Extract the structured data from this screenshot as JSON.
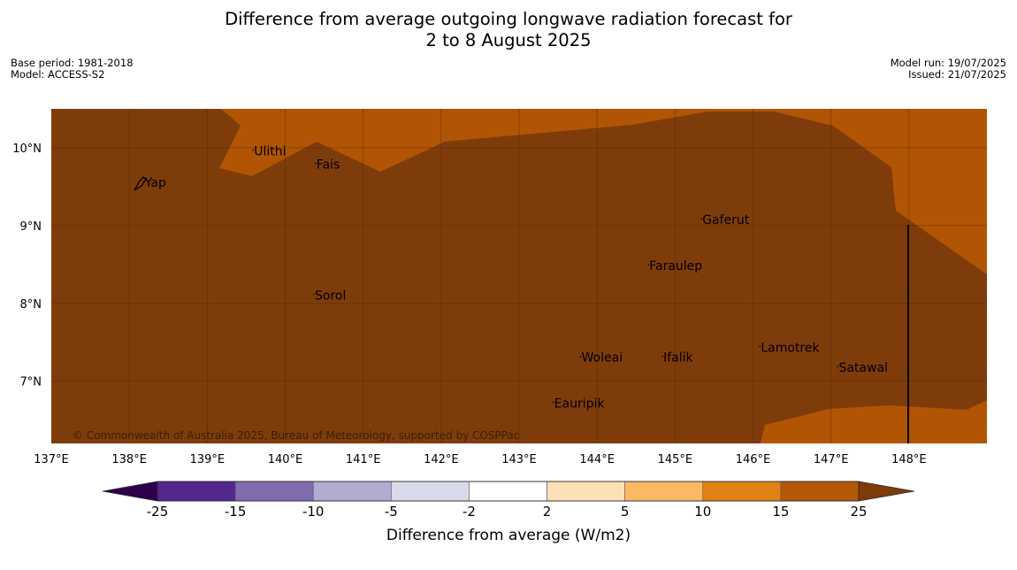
{
  "title_line1": "Difference from average outgoing longwave radiation forecast for",
  "title_line2": "2 to 8 August 2025",
  "meta_left": [
    "Base period: 1981-2018",
    "Model: ACCESS-S2"
  ],
  "meta_right": [
    "Model run: 19/07/2025",
    "Issued: 21/07/2025"
  ],
  "map": {
    "lon_range": [
      137,
      149
    ],
    "lat_range": [
      6.2,
      10.5
    ],
    "x_ticks": [
      "137°E",
      "138°E",
      "139°E",
      "140°E",
      "141°E",
      "142°E",
      "143°E",
      "144°E",
      "145°E",
      "146°E",
      "147°E",
      "148°E"
    ],
    "y_ticks": [
      "10°N",
      "9°N",
      "8°N",
      "7°N"
    ],
    "copyright": "© Commonwealth of Australia 2025, Bureau of Meteorology, supported by COSPPac",
    "places": [
      {
        "name": "Yap",
        "lon": 138.2,
        "lat": 9.5
      },
      {
        "name": "Ulithi",
        "lon": 139.6,
        "lat": 9.9
      },
      {
        "name": "Fais",
        "lon": 140.4,
        "lat": 9.73
      },
      {
        "name": "Gaferut",
        "lon": 145.35,
        "lat": 9.02
      },
      {
        "name": "Faraulep",
        "lon": 144.67,
        "lat": 8.43
      },
      {
        "name": "Sorol",
        "lon": 140.38,
        "lat": 8.05
      },
      {
        "name": "Woleai",
        "lon": 143.8,
        "lat": 7.25
      },
      {
        "name": "Ifalik",
        "lon": 144.85,
        "lat": 7.25
      },
      {
        "name": "Lamotrek",
        "lon": 146.1,
        "lat": 7.38
      },
      {
        "name": "Satawal",
        "lon": 147.1,
        "lat": 7.12
      },
      {
        "name": "Eauripik",
        "lon": 143.45,
        "lat": 6.66
      }
    ],
    "colors": {
      "band_15_25": "#7f3c0b",
      "band_10_15": "#b15504"
    }
  },
  "colorbar": {
    "label": "Difference from average (W/m2)",
    "ticks": [
      "-25",
      "-15",
      "-10",
      "-5",
      "-2",
      "2",
      "5",
      "10",
      "15",
      "25"
    ],
    "colors": [
      "#54278f",
      "#806cae",
      "#b2abd2",
      "#d8daeb",
      "#ffffff",
      "#fee0b6",
      "#fdb863",
      "#e08214",
      "#b35806"
    ],
    "under_color": "#2d004b",
    "over_color": "#7f3b08"
  }
}
